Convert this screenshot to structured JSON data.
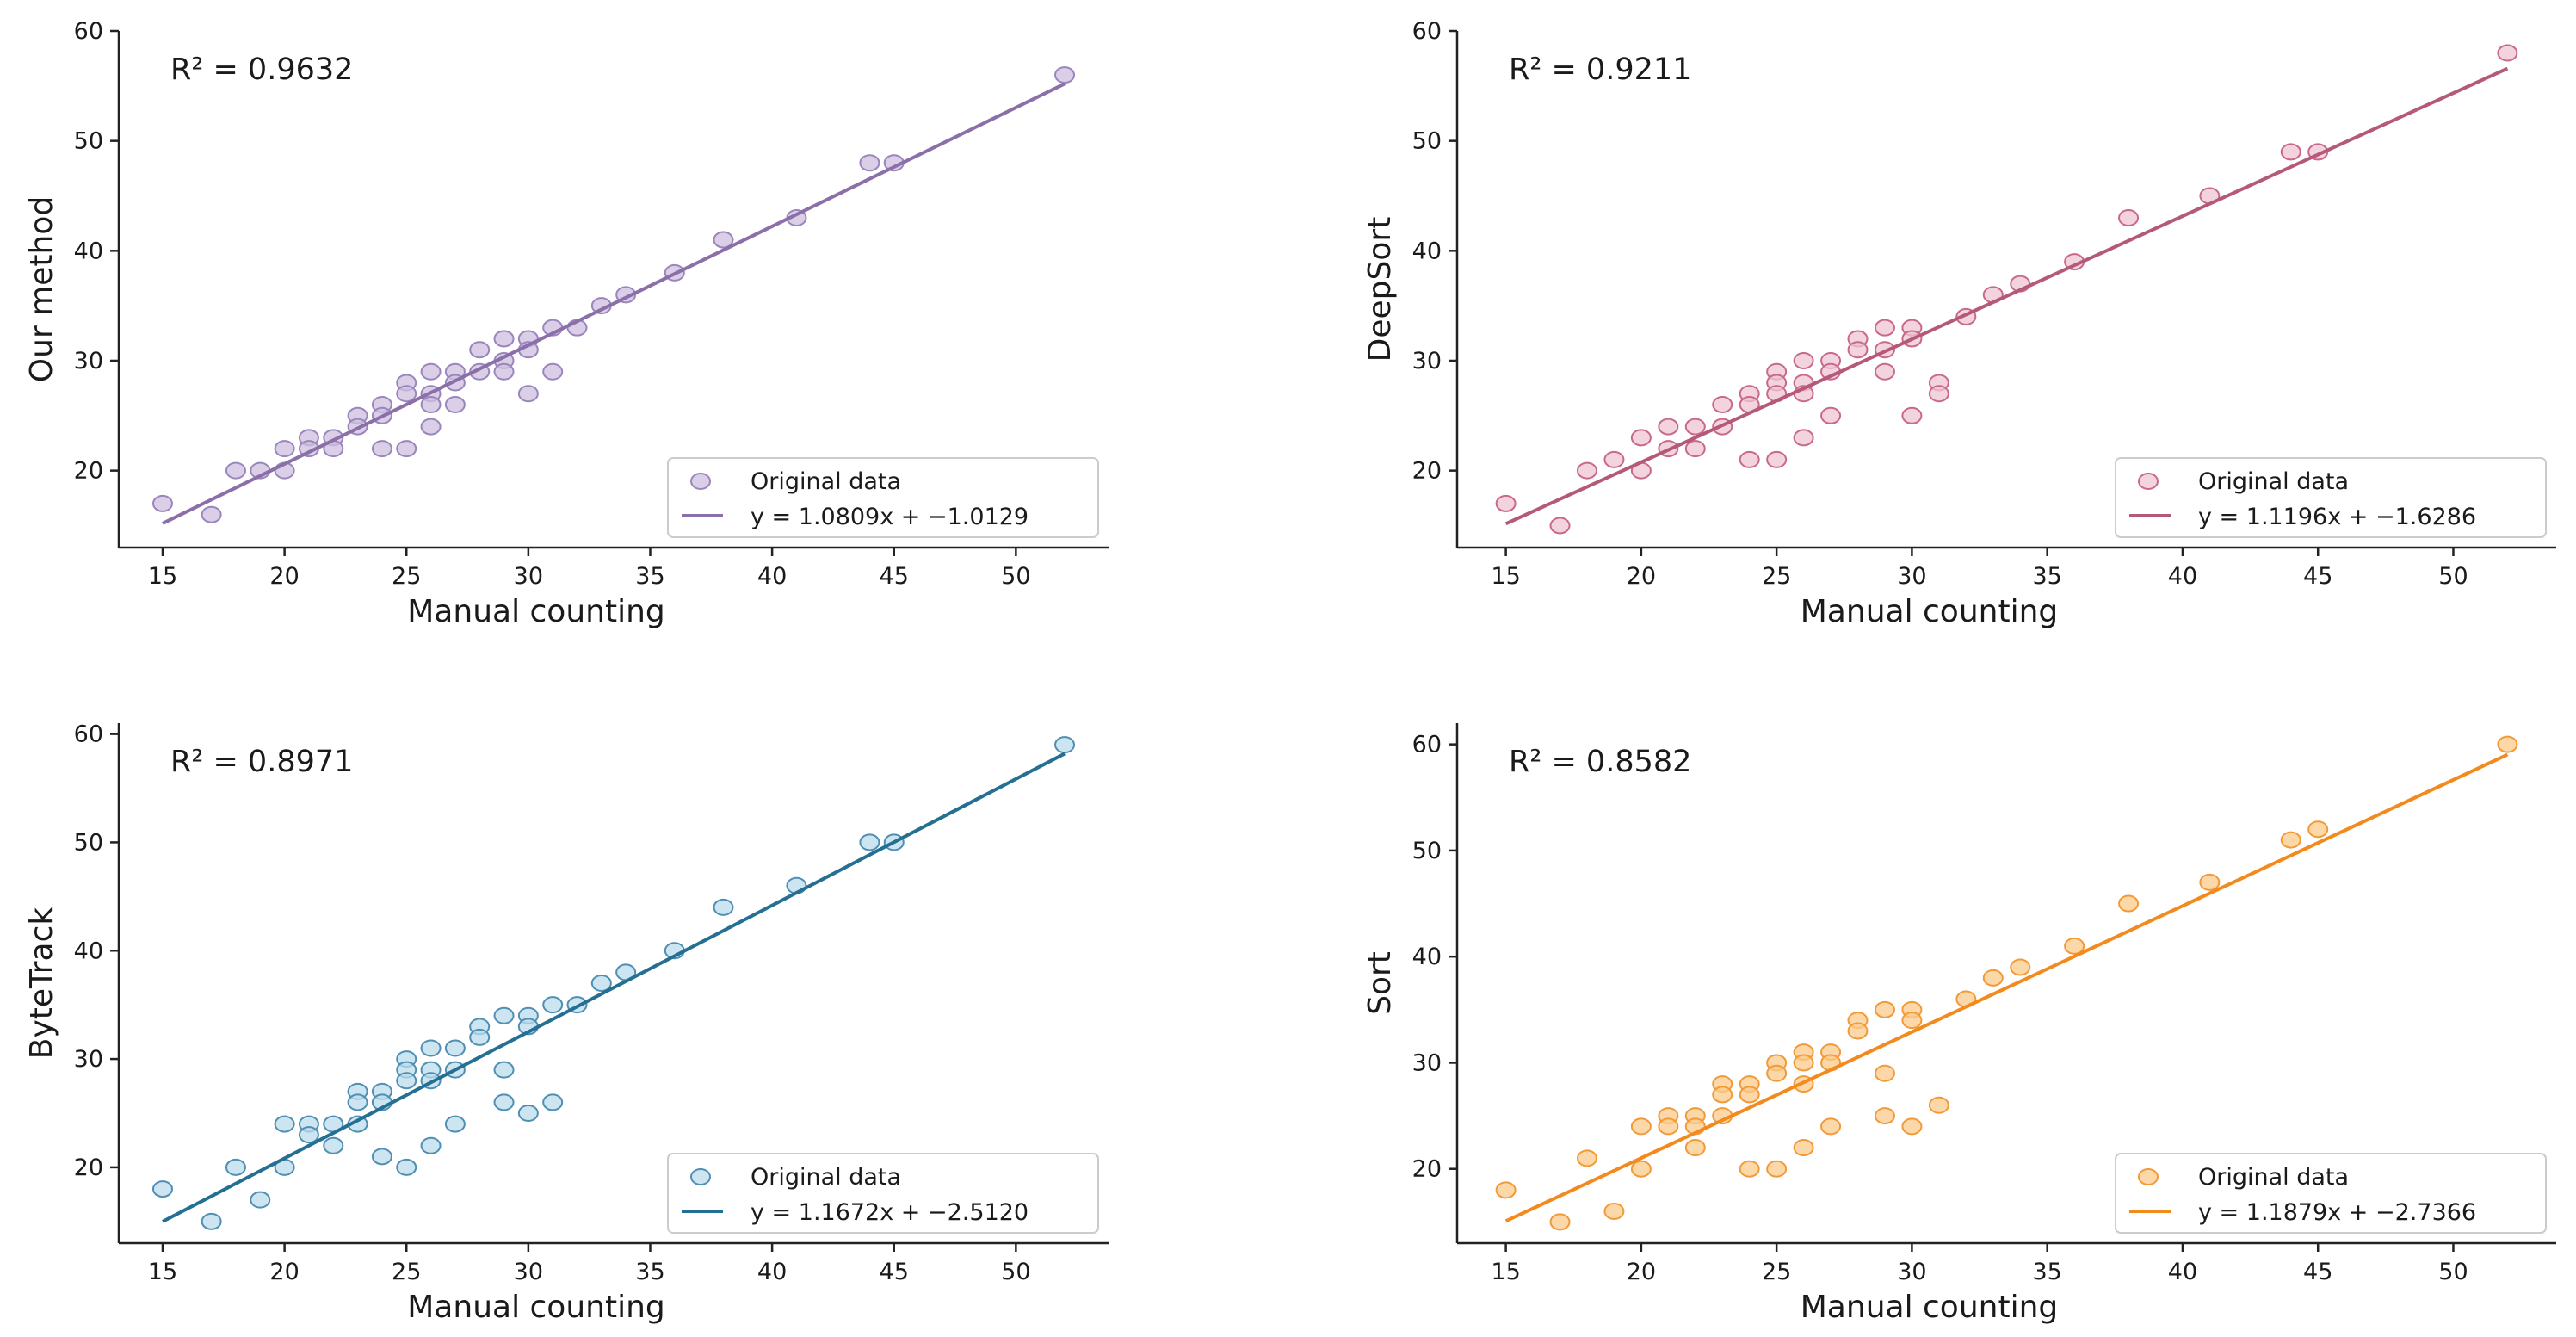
{
  "chart_data": [
    {
      "type": "scatter",
      "ylabel": "Our method",
      "xlabel": "Manual counting",
      "r2": "R² = 0.9632",
      "legend": {
        "points": "Original data",
        "line": "y = 1.0809x + −1.0129",
        "position": "bottom-right"
      },
      "slope": 1.0809,
      "intercept": -1.0129,
      "xlim": [
        13.2,
        53.8
      ],
      "ylim": [
        13.0,
        60.0
      ],
      "xticks": [
        15,
        20,
        25,
        30,
        35,
        40,
        45,
        50
      ],
      "yticks": [
        20,
        30,
        40,
        50,
        60
      ],
      "colors": {
        "marker_fill": "#cdbfdf",
        "marker_edge": "#9a86bd",
        "line": "#8b6fa9"
      },
      "points": [
        [
          15,
          17
        ],
        [
          17,
          16
        ],
        [
          18,
          20
        ],
        [
          19,
          20
        ],
        [
          20,
          22
        ],
        [
          20,
          20
        ],
        [
          21,
          23
        ],
        [
          21,
          22
        ],
        [
          22,
          23
        ],
        [
          22,
          22
        ],
        [
          23,
          25
        ],
        [
          23,
          24
        ],
        [
          24,
          26
        ],
        [
          24,
          25
        ],
        [
          24,
          22
        ],
        [
          25,
          28
        ],
        [
          25,
          27
        ],
        [
          25,
          22
        ],
        [
          26,
          29
        ],
        [
          26,
          27
        ],
        [
          26,
          26
        ],
        [
          26,
          24
        ],
        [
          27,
          29
        ],
        [
          27,
          28
        ],
        [
          27,
          26
        ],
        [
          28,
          31
        ],
        [
          28,
          29
        ],
        [
          29,
          32
        ],
        [
          29,
          30
        ],
        [
          29,
          29
        ],
        [
          30,
          32
        ],
        [
          30,
          31
        ],
        [
          30,
          27
        ],
        [
          31,
          33
        ],
        [
          31,
          29
        ],
        [
          32,
          33
        ],
        [
          33,
          35
        ],
        [
          34,
          36
        ],
        [
          36,
          38
        ],
        [
          38,
          41
        ],
        [
          41,
          43
        ],
        [
          44,
          48
        ],
        [
          45,
          48
        ],
        [
          52,
          56
        ]
      ]
    },
    {
      "type": "scatter",
      "ylabel": "DeepSort",
      "xlabel": "Manual counting",
      "r2": "R² = 0.9211",
      "legend": {
        "points": "Original data",
        "line": "y = 1.1196x + −1.6286",
        "position": "bottom-right"
      },
      "slope": 1.1196,
      "intercept": -1.6286,
      "xlim": [
        13.2,
        53.8
      ],
      "ylim": [
        13.0,
        60.0
      ],
      "xticks": [
        15,
        20,
        25,
        30,
        35,
        40,
        45,
        50
      ],
      "yticks": [
        20,
        30,
        40,
        50,
        60
      ],
      "colors": {
        "marker_fill": "#efc5d3",
        "marker_edge": "#c9688c",
        "line": "#b5597a"
      },
      "points": [
        [
          15,
          17
        ],
        [
          17,
          15
        ],
        [
          18,
          20
        ],
        [
          19,
          21
        ],
        [
          20,
          23
        ],
        [
          20,
          20
        ],
        [
          21,
          24
        ],
        [
          21,
          22
        ],
        [
          22,
          24
        ],
        [
          22,
          22
        ],
        [
          23,
          26
        ],
        [
          23,
          24
        ],
        [
          24,
          27
        ],
        [
          24,
          26
        ],
        [
          24,
          21
        ],
        [
          25,
          29
        ],
        [
          25,
          28
        ],
        [
          25,
          27
        ],
        [
          25,
          21
        ],
        [
          26,
          30
        ],
        [
          26,
          28
        ],
        [
          26,
          27
        ],
        [
          26,
          23
        ],
        [
          27,
          30
        ],
        [
          27,
          29
        ],
        [
          27,
          25
        ],
        [
          28,
          32
        ],
        [
          28,
          31
        ],
        [
          29,
          33
        ],
        [
          29,
          31
        ],
        [
          29,
          29
        ],
        [
          30,
          33
        ],
        [
          30,
          32
        ],
        [
          30,
          25
        ],
        [
          31,
          28
        ],
        [
          31,
          27
        ],
        [
          32,
          34
        ],
        [
          33,
          36
        ],
        [
          34,
          37
        ],
        [
          36,
          39
        ],
        [
          38,
          43
        ],
        [
          41,
          45
        ],
        [
          44,
          49
        ],
        [
          45,
          49
        ],
        [
          52,
          58
        ]
      ]
    },
    {
      "type": "scatter",
      "ylabel": "ByteTrack",
      "xlabel": "Manual counting",
      "r2": "R² = 0.8971",
      "legend": {
        "points": "Original data",
        "line": "y = 1.1672x + −2.5120",
        "position": "bottom-right"
      },
      "slope": 1.1672,
      "intercept": -2.512,
      "xlim": [
        13.2,
        53.8
      ],
      "ylim": [
        13.0,
        61.0
      ],
      "xticks": [
        15,
        20,
        25,
        30,
        35,
        40,
        45,
        50
      ],
      "yticks": [
        20,
        30,
        40,
        50,
        60
      ],
      "colors": {
        "marker_fill": "#bcdcec",
        "marker_edge": "#4f8fb3",
        "line": "#246f92"
      },
      "points": [
        [
          15,
          18
        ],
        [
          17,
          15
        ],
        [
          18,
          20
        ],
        [
          19,
          17
        ],
        [
          20,
          24
        ],
        [
          20,
          20
        ],
        [
          21,
          24
        ],
        [
          21,
          23
        ],
        [
          22,
          24
        ],
        [
          22,
          22
        ],
        [
          23,
          27
        ],
        [
          23,
          26
        ],
        [
          23,
          24
        ],
        [
          24,
          27
        ],
        [
          24,
          26
        ],
        [
          24,
          21
        ],
        [
          25,
          30
        ],
        [
          25,
          29
        ],
        [
          25,
          28
        ],
        [
          25,
          20
        ],
        [
          26,
          31
        ],
        [
          26,
          29
        ],
        [
          26,
          28
        ],
        [
          26,
          22
        ],
        [
          27,
          31
        ],
        [
          27,
          29
        ],
        [
          27,
          24
        ],
        [
          28,
          33
        ],
        [
          28,
          32
        ],
        [
          29,
          34
        ],
        [
          29,
          29
        ],
        [
          29,
          26
        ],
        [
          30,
          34
        ],
        [
          30,
          33
        ],
        [
          30,
          25
        ],
        [
          31,
          35
        ],
        [
          31,
          26
        ],
        [
          32,
          35
        ],
        [
          33,
          37
        ],
        [
          34,
          38
        ],
        [
          36,
          40
        ],
        [
          38,
          44
        ],
        [
          41,
          46
        ],
        [
          44,
          50
        ],
        [
          45,
          50
        ],
        [
          52,
          59
        ]
      ]
    },
    {
      "type": "scatter",
      "ylabel": "Sort",
      "xlabel": "Manual counting",
      "r2": "R² = 0.8582",
      "legend": {
        "points": "Original data",
        "line": "y = 1.1879x + −2.7366",
        "position": "bottom-right"
      },
      "slope": 1.1879,
      "intercept": -2.7366,
      "xlim": [
        13.2,
        53.8
      ],
      "ylim": [
        13.0,
        62.0
      ],
      "xticks": [
        15,
        20,
        25,
        30,
        35,
        40,
        45,
        50
      ],
      "yticks": [
        20,
        30,
        40,
        50,
        60
      ],
      "colors": {
        "marker_fill": "#fbcb8c",
        "marker_edge": "#f29a38",
        "line": "#f28a1e"
      },
      "points": [
        [
          15,
          18
        ],
        [
          17,
          15
        ],
        [
          18,
          21
        ],
        [
          19,
          16
        ],
        [
          20,
          24
        ],
        [
          20,
          20
        ],
        [
          21,
          25
        ],
        [
          21,
          24
        ],
        [
          22,
          25
        ],
        [
          22,
          24
        ],
        [
          22,
          22
        ],
        [
          23,
          28
        ],
        [
          23,
          27
        ],
        [
          23,
          25
        ],
        [
          24,
          28
        ],
        [
          24,
          27
        ],
        [
          24,
          20
        ],
        [
          25,
          30
        ],
        [
          25,
          29
        ],
        [
          25,
          20
        ],
        [
          26,
          31
        ],
        [
          26,
          30
        ],
        [
          26,
          28
        ],
        [
          26,
          22
        ],
        [
          27,
          31
        ],
        [
          27,
          30
        ],
        [
          27,
          24
        ],
        [
          28,
          34
        ],
        [
          28,
          33
        ],
        [
          29,
          35
        ],
        [
          29,
          29
        ],
        [
          29,
          25
        ],
        [
          30,
          35
        ],
        [
          30,
          34
        ],
        [
          30,
          24
        ],
        [
          31,
          26
        ],
        [
          32,
          36
        ],
        [
          33,
          38
        ],
        [
          34,
          39
        ],
        [
          36,
          41
        ],
        [
          38,
          45
        ],
        [
          41,
          47
        ],
        [
          44,
          51
        ],
        [
          45,
          52
        ],
        [
          52,
          60
        ]
      ]
    }
  ]
}
